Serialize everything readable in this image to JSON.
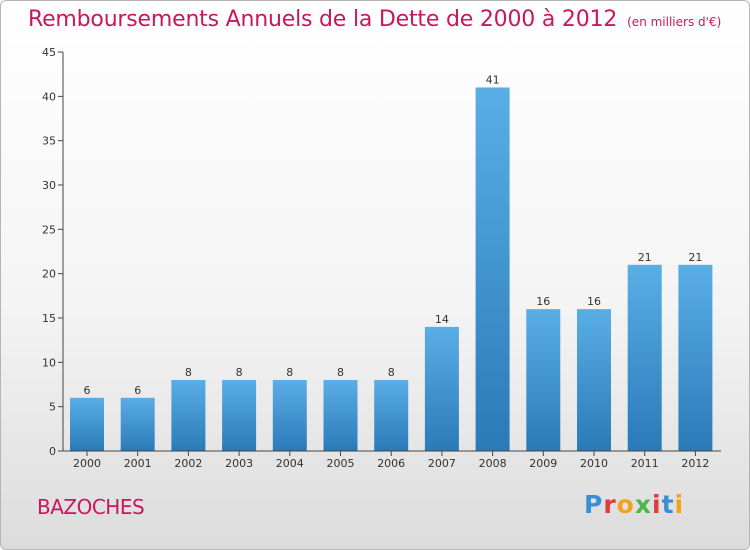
{
  "title": "Remboursements Annuels de la Dette de 2000 à 2012",
  "subtitle": "(en milliers d'€)",
  "commune": "BAZOCHES",
  "logo": "Proxiti",
  "colors": {
    "title": "#c8175f",
    "bar_top": "#5aaee6",
    "bar_bottom": "#2a7ab8"
  },
  "chart_data": {
    "type": "bar",
    "title": "Remboursements Annuels de la Dette de 2000 à 2012",
    "subtitle": "(en milliers d'€)",
    "categories": [
      "2000",
      "2001",
      "2002",
      "2003",
      "2004",
      "2005",
      "2006",
      "2007",
      "2008",
      "2009",
      "2010",
      "2011",
      "2012"
    ],
    "values": [
      6,
      6,
      8,
      8,
      8,
      8,
      8,
      14,
      41,
      16,
      16,
      21,
      21
    ],
    "ylim": [
      0,
      45
    ],
    "yticks": [
      0,
      5,
      10,
      15,
      20,
      25,
      30,
      35,
      40,
      45
    ],
    "grid": false,
    "legend": "none"
  }
}
